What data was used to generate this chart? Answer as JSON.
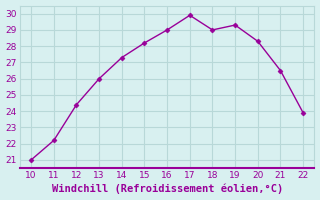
{
  "x": [
    10,
    11,
    12,
    13,
    14,
    15,
    16,
    17,
    18,
    19,
    20,
    21,
    22
  ],
  "y": [
    21,
    22.2,
    24.4,
    26.0,
    27.3,
    28.2,
    29.0,
    29.9,
    29.0,
    29.3,
    28.3,
    26.5,
    23.9
  ],
  "xlim": [
    9.5,
    22.5
  ],
  "ylim": [
    20.5,
    30.5
  ],
  "xticks": [
    10,
    11,
    12,
    13,
    14,
    15,
    16,
    17,
    18,
    19,
    20,
    21,
    22
  ],
  "yticks": [
    21,
    22,
    23,
    24,
    25,
    26,
    27,
    28,
    29,
    30
  ],
  "xlabel": "Windchill (Refroidissement éolien,°C)",
  "line_color": "#990099",
  "marker": "D",
  "marker_size": 2.5,
  "bg_color": "#d8f0f0",
  "grid_color": "#b8d8d8",
  "spine_color": "#990099",
  "tick_color": "#990099",
  "label_color": "#990099",
  "tick_fontsize": 6.5,
  "xlabel_fontsize": 7.5
}
